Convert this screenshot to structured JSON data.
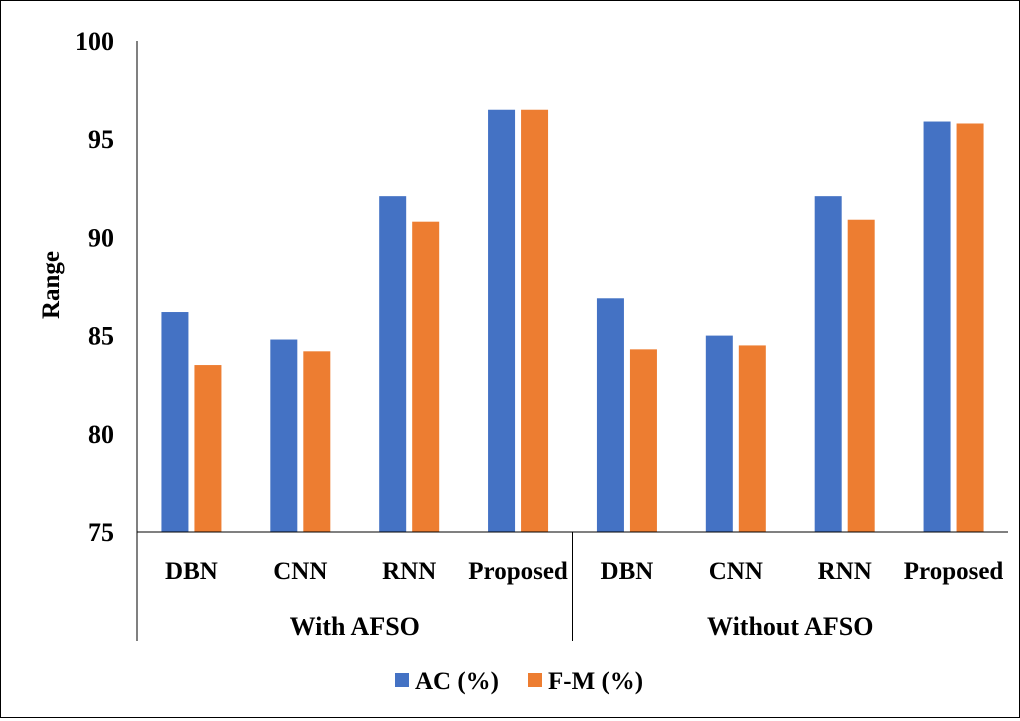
{
  "chart_data": {
    "type": "bar",
    "ylabel": "Range",
    "ylim": [
      75,
      100
    ],
    "yticks": [
      "75",
      "80",
      "85",
      "90",
      "95",
      "100"
    ],
    "groups": [
      {
        "label": "With AFSO",
        "categories": [
          "DBN",
          "CNN",
          "RNN",
          "Proposed"
        ]
      },
      {
        "label": "Without AFSO",
        "categories": [
          "DBN",
          "CNN",
          "RNN",
          "Proposed"
        ]
      }
    ],
    "series": [
      {
        "name": "AC (%)",
        "color": "#4472C4",
        "values": [
          86.2,
          84.8,
          92.1,
          96.5,
          86.9,
          85.0,
          92.1,
          95.9
        ]
      },
      {
        "name": "F-M (%)",
        "color": "#ED7D31",
        "values": [
          83.5,
          84.2,
          90.8,
          96.5,
          84.3,
          84.5,
          90.9,
          95.8
        ]
      }
    ],
    "legend_position": "bottom",
    "grid": false
  }
}
